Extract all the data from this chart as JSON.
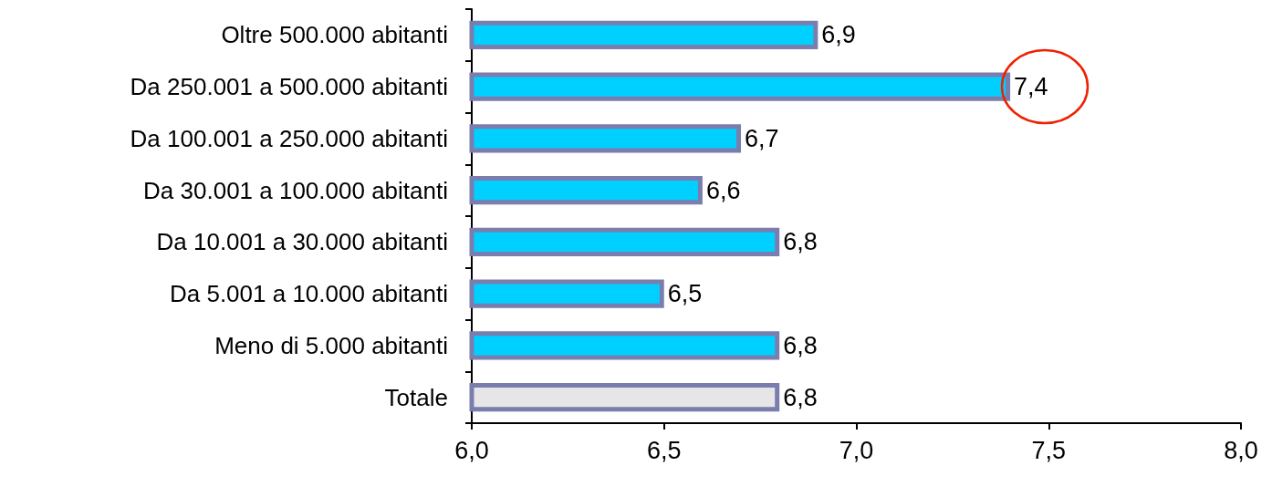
{
  "chart_data": {
    "type": "bar",
    "orientation": "horizontal",
    "categories": [
      "Oltre 500.000 abitanti",
      "Da 250.001 a 500.000 abitanti",
      "Da 100.001 a 250.000 abitanti",
      "Da 30.001 a 100.000 abitanti",
      "Da 10.001 a 30.000 abitanti",
      "Da 5.001 a 10.000 abitanti",
      "Meno di 5.000 abitanti",
      "Totale"
    ],
    "values": [
      6.9,
      7.4,
      6.7,
      6.6,
      6.8,
      6.5,
      6.8,
      6.8
    ],
    "colors": [
      "#00d0ff",
      "#00d0ff",
      "#00d0ff",
      "#00d0ff",
      "#00d0ff",
      "#00d0ff",
      "#00d0ff",
      "#e6e6e6"
    ],
    "value_labels": [
      "6,9",
      "7,4",
      "6,7",
      "6,6",
      "6,8",
      "6,5",
      "6,8",
      "6,8"
    ],
    "xlim": [
      6,
      8
    ],
    "xticks": [
      {
        "value": 6,
        "label": "6,0"
      },
      {
        "value": 6.5,
        "label": "6,5"
      },
      {
        "value": 7,
        "label": "7,0"
      },
      {
        "value": 7.5,
        "label": "7,5"
      },
      {
        "value": 8,
        "label": "8,0"
      }
    ],
    "grid": false
  }
}
